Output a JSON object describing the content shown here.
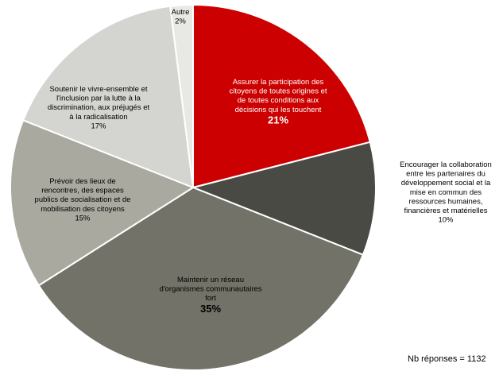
{
  "chart_data": {
    "type": "pie",
    "title": "",
    "start_angle_deg": 0,
    "slices": [
      {
        "label_lines": [
          "Assurer la participation des",
          "citoyens de toutes origines et",
          "de toutes conditions aux",
          "décisions qui les touchent"
        ],
        "value": 21,
        "pct_text": "21%",
        "color": "#cc0000",
        "text_color": "#ffffff",
        "emphasis": true
      },
      {
        "label_lines": [
          "Encourager la collaboration",
          "entre les partenaires du",
          "développement  social et la",
          "mise en commun des",
          "ressources humaines,",
          "financières et matérielles"
        ],
        "value": 10,
        "pct_text": "10%",
        "color": "#4a4a45",
        "text_color": "#000000",
        "emphasis": false,
        "label_outside": true
      },
      {
        "label_lines": [
          "Maintenir un réseau",
          "d'organismes communautaires",
          "fort"
        ],
        "value": 35,
        "pct_text": "35%",
        "color": "#727268",
        "text_color": "#000000",
        "emphasis": true
      },
      {
        "label_lines": [
          "Prévoir des lieux de",
          "rencontres, des espaces",
          "publics de socialisation et de",
          "mobilisation des citoyens"
        ],
        "value": 15,
        "pct_text": "15%",
        "color": "#a9a9a0",
        "text_color": "#000000",
        "emphasis": false
      },
      {
        "label_lines": [
          "Soutenir le vivre-ensemble  et",
          "l'inclusion par la lutte à la",
          "discrimination, aux préjugés et",
          "à la radicalisation"
        ],
        "value": 17,
        "pct_text": "17%",
        "color": "#d4d4d0",
        "text_color": "#000000",
        "emphasis": false
      },
      {
        "label_lines": [
          "Autre"
        ],
        "value": 2,
        "pct_text": "2%",
        "color": "#e8e8e5",
        "text_color": "#000000",
        "emphasis": false
      }
    ]
  },
  "footer": {
    "responses": "Nb réponses = 1132"
  }
}
